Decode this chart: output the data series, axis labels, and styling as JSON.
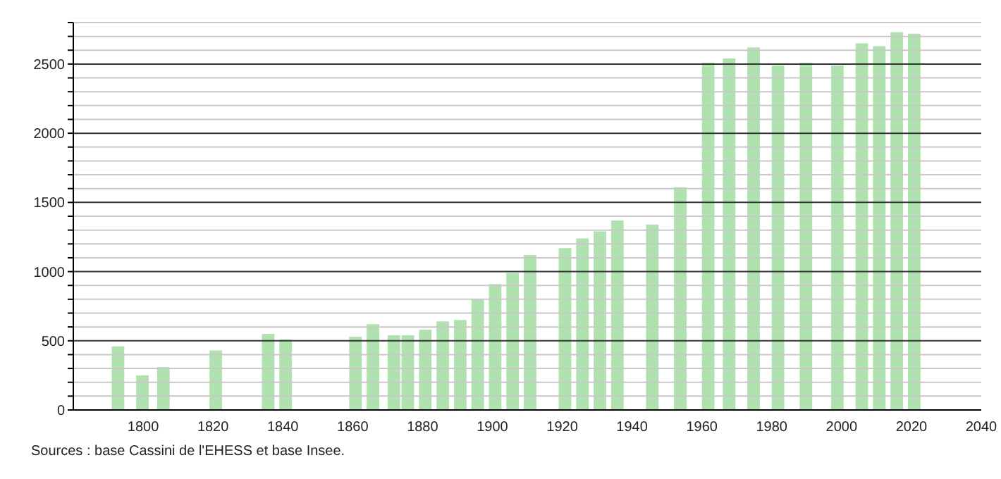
{
  "chart_data": {
    "type": "bar",
    "x": [
      1793,
      1800,
      1806,
      1821,
      1836,
      1841,
      1861,
      1866,
      1872,
      1876,
      1881,
      1886,
      1891,
      1896,
      1901,
      1906,
      1911,
      1921,
      1926,
      1931,
      1936,
      1946,
      1954,
      1962,
      1968,
      1975,
      1982,
      1990,
      1999,
      2006,
      2011,
      2016,
      2021
    ],
    "values": [
      460,
      250,
      310,
      430,
      550,
      510,
      530,
      620,
      540,
      540,
      580,
      640,
      650,
      800,
      910,
      990,
      1120,
      1170,
      1240,
      1290,
      1370,
      1340,
      1610,
      2510,
      2540,
      2620,
      2490,
      2510,
      2490,
      2650,
      2630,
      2730,
      2720
    ],
    "color": "#b0e2b0",
    "xlim": [
      1780,
      2040
    ],
    "xticks": [
      1800,
      1820,
      1840,
      1860,
      1880,
      1900,
      1920,
      1940,
      1960,
      1980,
      2000,
      2020,
      2040
    ],
    "ylim": [
      0,
      2800
    ],
    "yticks": [
      0,
      {
        "value": 100,
        "label": null
      },
      {
        "value": 200,
        "label": null
      },
      {
        "value": 300,
        "label": null
      },
      {
        "value": 400,
        "label": null
      },
      500,
      {
        "value": 600,
        "label": null
      },
      {
        "value": 700,
        "label": null
      },
      {
        "value": 800,
        "label": null
      },
      {
        "value": 900,
        "label": null
      },
      1000,
      {
        "value": 1100,
        "label": null
      },
      {
        "value": 1200,
        "label": null
      },
      {
        "value": 1300,
        "label": null
      },
      {
        "value": 1400,
        "label": null
      },
      1500,
      {
        "value": 1600,
        "label": null
      },
      {
        "value": 1700,
        "label": null
      },
      {
        "value": 1800,
        "label": null
      },
      {
        "value": 1900,
        "label": null
      },
      2000,
      {
        "value": 2100,
        "label": null
      },
      {
        "value": 2200,
        "label": null
      },
      {
        "value": 2300,
        "label": null
      },
      {
        "value": 2400,
        "label": null
      },
      2500,
      {
        "value": 2600,
        "label": null
      },
      {
        "value": 2700,
        "label": null
      },
      {
        "value": 2800,
        "label": null
      }
    ],
    "grid": "y",
    "annotations": [
      "Sources : base Cassini de l'EHESS et base Insee."
    ]
  }
}
